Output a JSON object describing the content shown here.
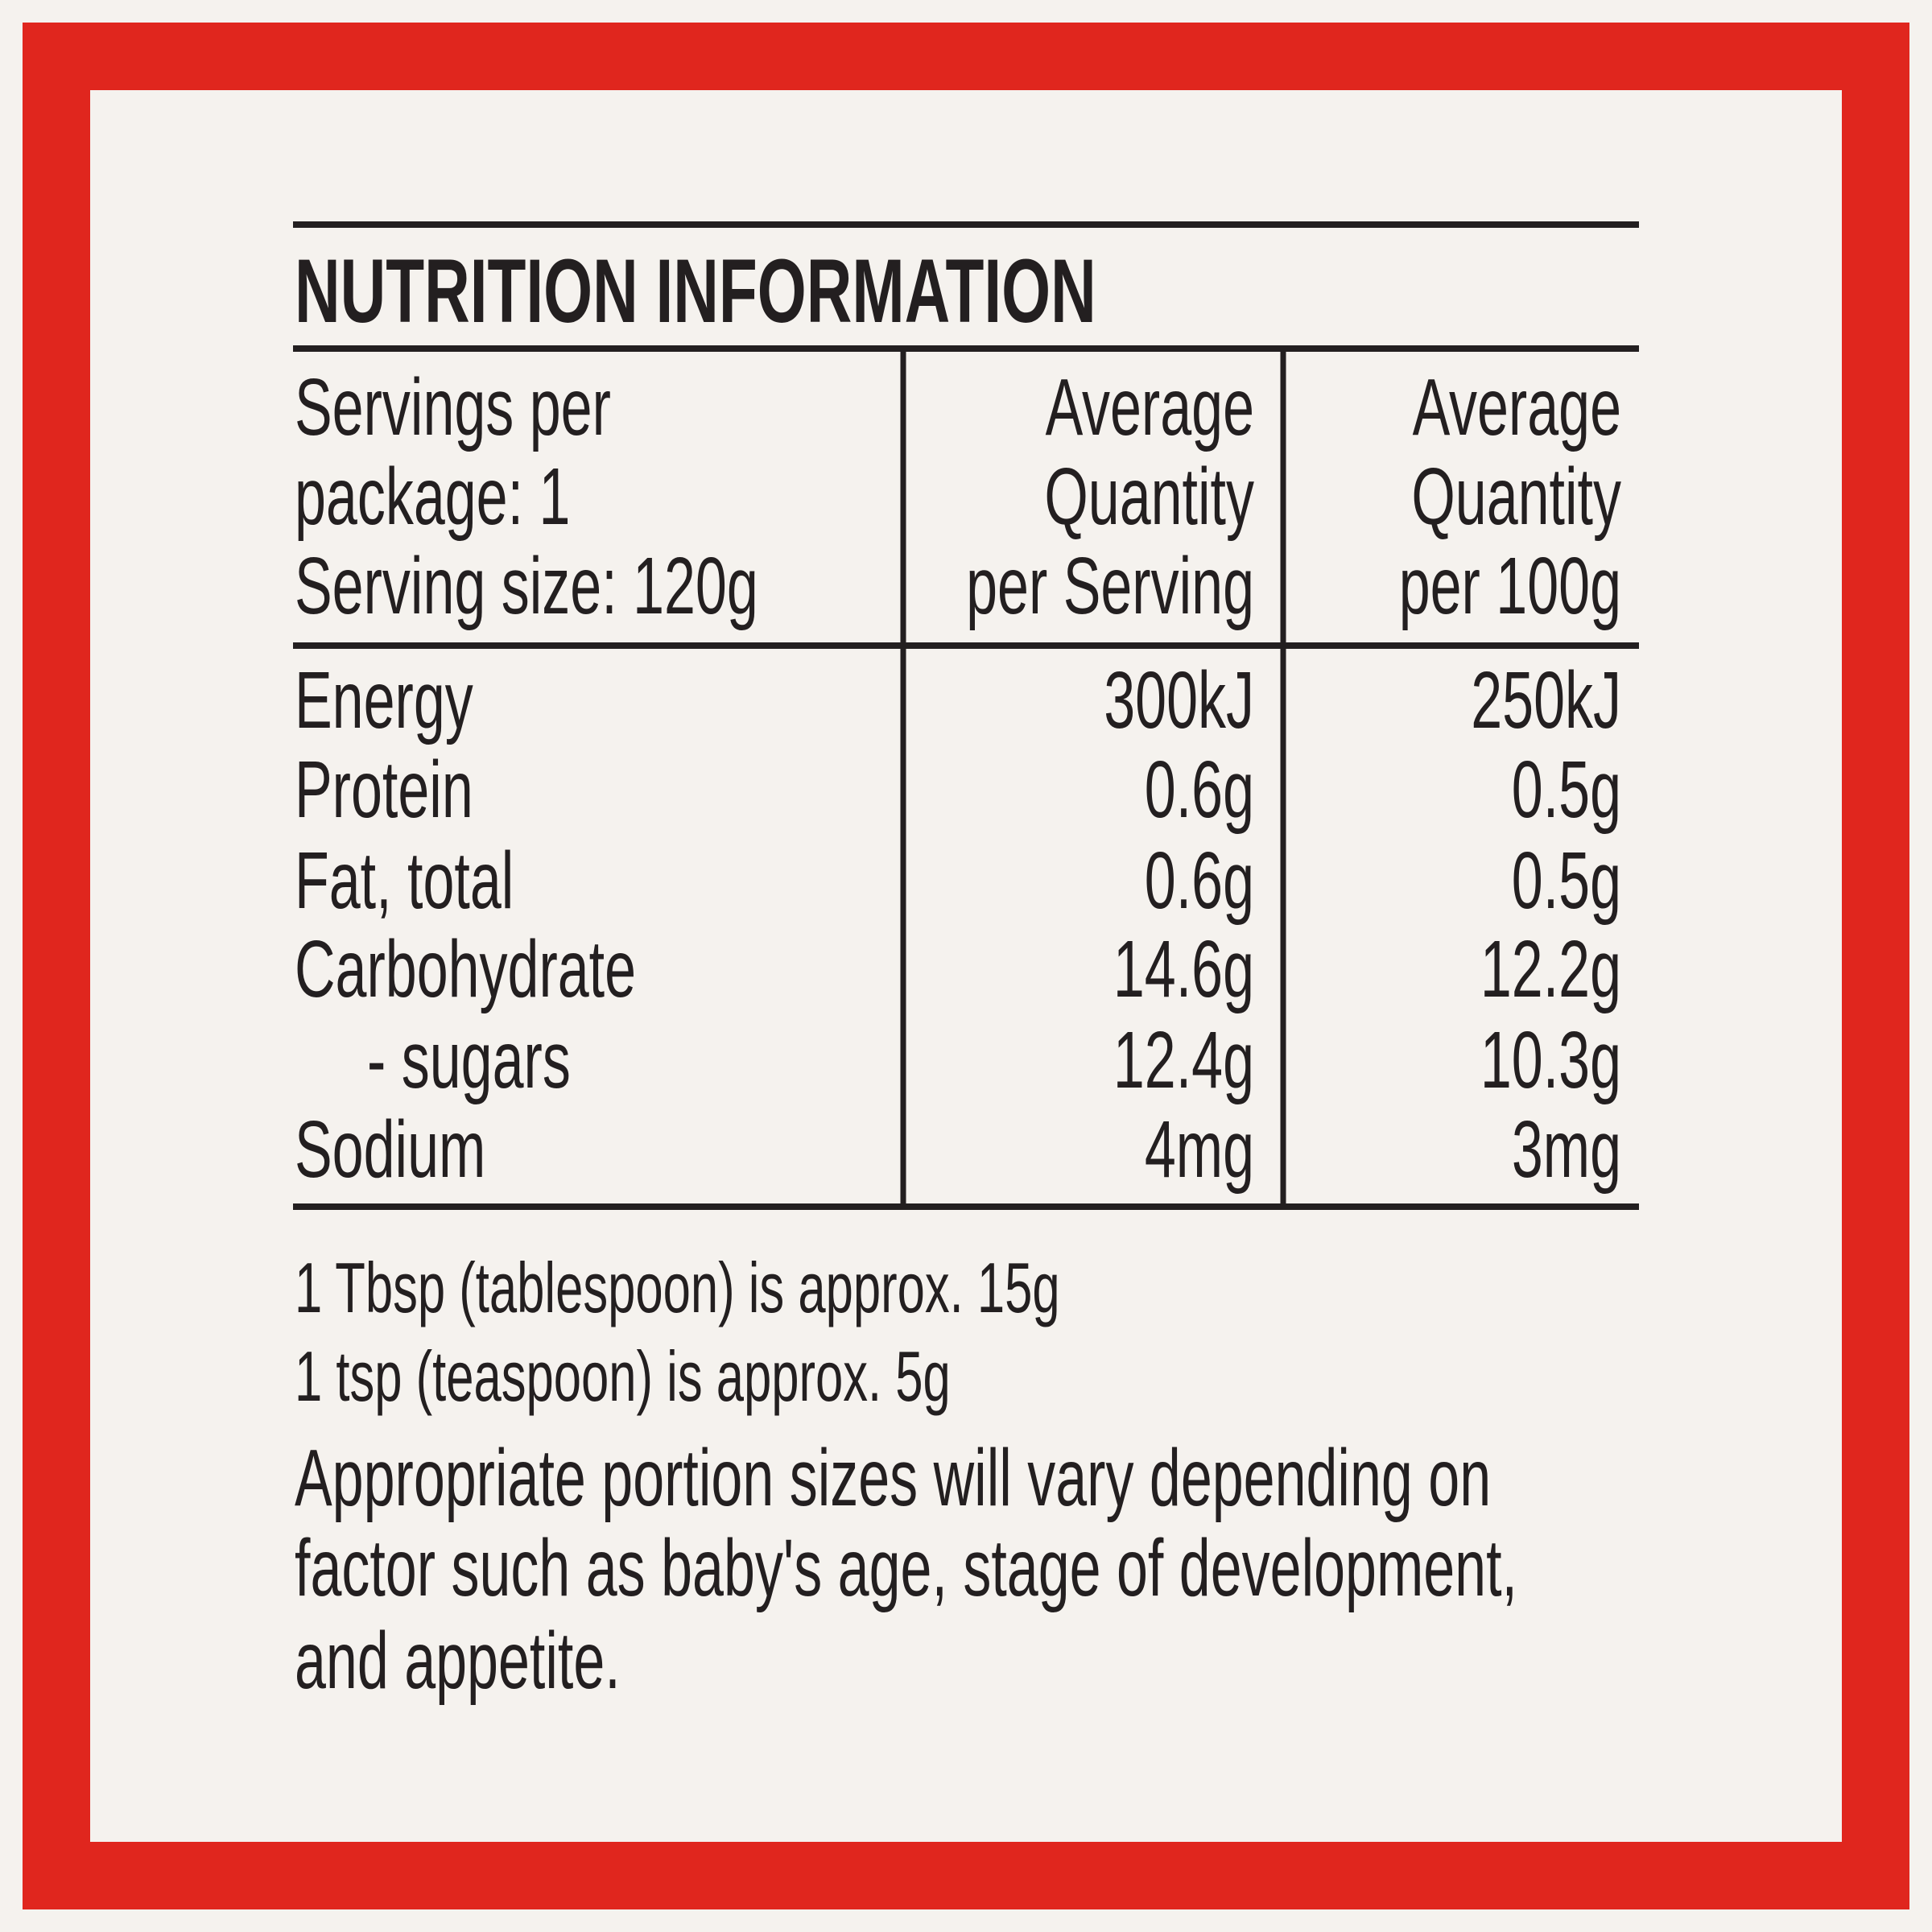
{
  "title": "NUTRITION INFORMATION",
  "header": {
    "serving_info": [
      "Servings per",
      "package: 1",
      "Serving size: 120g"
    ],
    "per_serving": [
      "Average",
      "Quantity",
      "per Serving"
    ],
    "per_100g": [
      "Average",
      "Quantity",
      "per 100g"
    ]
  },
  "rows": [
    [
      "Energy",
      "300kJ",
      "250kJ"
    ],
    [
      "Protein",
      "0.6g",
      "0.5g"
    ],
    [
      "Fat, total",
      "0.6g",
      "0.5g"
    ],
    [
      "Carbohydrate",
      "14.6g",
      "12.2g"
    ],
    [
      "- sugars",
      "12.4g",
      "10.3g"
    ],
    [
      "Sodium",
      "4mg",
      "3mg"
    ]
  ],
  "footnotes": [
    "1 Tbsp (tablespoon) is approx. 15g",
    "1 tsp (teaspoon) is approx. 5g"
  ],
  "note": [
    "Appropriate portion sizes will vary depending on",
    "factor such as baby's age, stage of development,",
    "and appetite."
  ]
}
